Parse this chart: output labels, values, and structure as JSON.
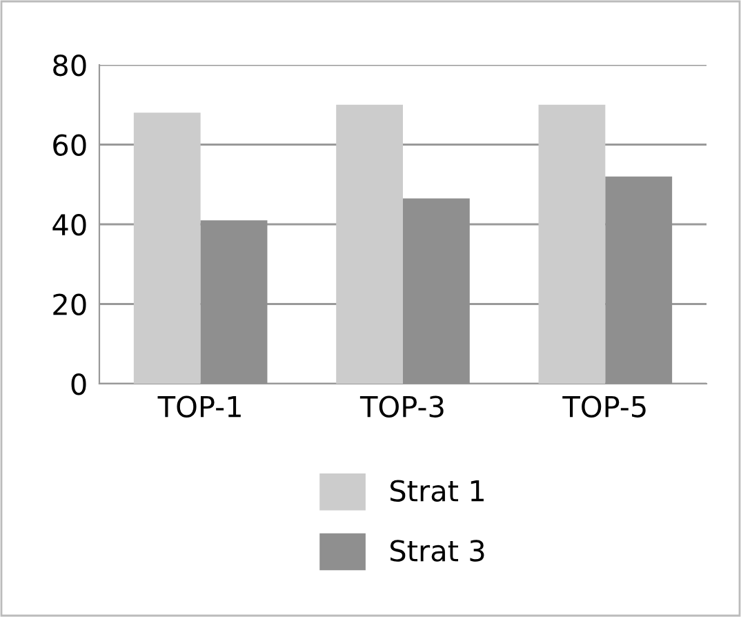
{
  "chart_data": {
    "type": "bar",
    "categories": [
      "TOP-1",
      "TOP-3",
      "TOP-5"
    ],
    "series": [
      {
        "name": "Strat 1",
        "color": "#cccccc",
        "values": [
          68,
          70,
          70
        ]
      },
      {
        "name": "Strat 3",
        "color": "#8f8f8f",
        "values": [
          41,
          46.5,
          52
        ]
      }
    ],
    "ylim": [
      0,
      80
    ],
    "yticks": [
      0,
      20,
      40,
      60,
      80
    ],
    "grid": "y",
    "legend": "bottom"
  }
}
